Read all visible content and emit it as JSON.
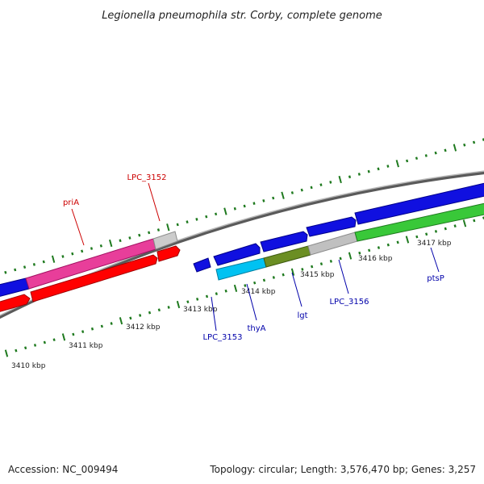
{
  "title": "Legionella pneumophila str. Corby, complete genome",
  "footer": {
    "accession": "Accession: NC_009494",
    "summary": "Topology: circular; Length: 3,576,470 bp; Genes: 3,257"
  },
  "colors": {
    "backbone": "#7a7a7a",
    "tick_mark": "#1f7a1f",
    "label_forward": "#cc0000",
    "label_reverse": "#0000aa"
  },
  "scale": {
    "unit": "kbp",
    "ticks": [
      {
        "label": "3410 kbp"
      },
      {
        "label": "3411 kbp"
      },
      {
        "label": "3412 kbp"
      },
      {
        "label": "3413 kbp"
      },
      {
        "label": "3414 kbp"
      },
      {
        "label": "3415 kbp"
      },
      {
        "label": "3416 kbp"
      },
      {
        "label": "3417 kbp"
      }
    ]
  },
  "genes": [
    {
      "name": "priA",
      "strand": "forward",
      "color": "#e83e9a",
      "label_color": "#cc0000"
    },
    {
      "name": "LPC_3152",
      "strand": "forward",
      "color": "#c8c8c8",
      "label_color": "#cc0000"
    },
    {
      "name": "LPC_3153",
      "strand": "reverse",
      "color": "#00c2f2",
      "label_color": "#0000aa"
    },
    {
      "name": "thyA",
      "strand": "reverse",
      "color": "#00c2f2",
      "label_color": "#0000aa"
    },
    {
      "name": "lgt",
      "strand": "reverse",
      "color": "#6b8e23",
      "label_color": "#0000aa"
    },
    {
      "name": "LPC_3156",
      "strand": "reverse",
      "color": "#c0c0c0",
      "label_color": "#0000aa"
    },
    {
      "name": "ptsP",
      "strand": "reverse",
      "color": "#39c839",
      "label_color": "#0000aa"
    }
  ]
}
